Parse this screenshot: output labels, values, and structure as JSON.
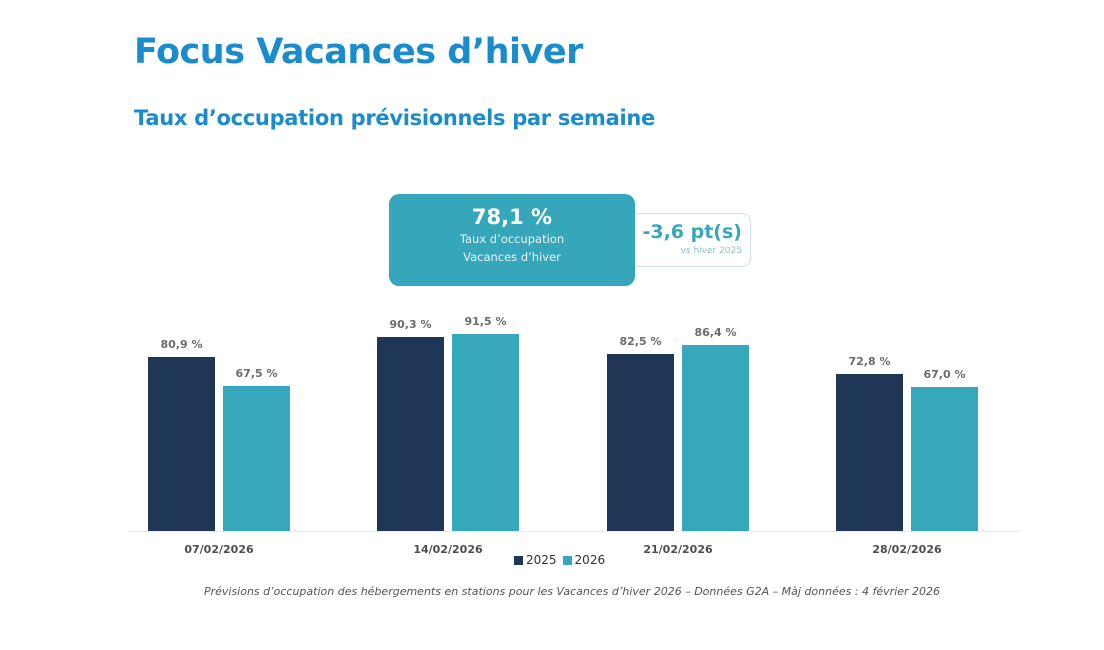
{
  "header": {
    "title": "Focus Vacances d’hiver",
    "subtitle": "Taux d’occupation prévisionnels par semaine"
  },
  "kpi": {
    "main_value": "78,1 %",
    "main_label_1": "Taux d’occupation",
    "main_label_2": "Vacances d’hiver",
    "delta_value": "-3,6 pt(s)",
    "delta_label": "vs hiver 2025"
  },
  "colors": {
    "title": "#1a8ccc",
    "series_2025": "#1f3657",
    "series_2026": "#37a8bc"
  },
  "chart_data": {
    "type": "bar",
    "title": "Taux d’occupation prévisionnels par semaine",
    "xlabel": "",
    "ylabel": "",
    "categories": [
      "07/02/2026",
      "14/02/2026",
      "21/02/2026",
      "28/02/2026"
    ],
    "series": [
      {
        "name": "2025",
        "values": [
          80.9,
          90.3,
          82.5,
          72.8
        ],
        "labels": [
          "80,9 %",
          "90,3 %",
          "82,5 %",
          "72,8 %"
        ],
        "color": "#1f3657"
      },
      {
        "name": "2026",
        "values": [
          67.5,
          91.5,
          86.4,
          67.0
        ],
        "labels": [
          "67,5 %",
          "91,5 %",
          "86,4 %",
          "67,0 %"
        ],
        "color": "#37a8bc"
      }
    ],
    "ylim": [
      0,
      100
    ],
    "grid": false,
    "legend_position": "bottom-center"
  },
  "legend": {
    "items": [
      "2025",
      "2026"
    ]
  },
  "footnote": "Prévisions d’occupation des hébergements en stations pour les Vacances d’hiver 2026 – Données G2A – Màj données : 4 février 2026"
}
